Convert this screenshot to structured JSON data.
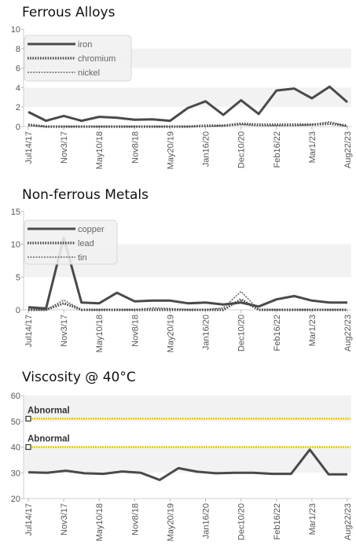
{
  "chart_data": [
    {
      "type": "line",
      "title": "Ferrous Alloys",
      "ylim": [
        0,
        10
      ],
      "y_ticks": [
        0,
        2,
        4,
        6,
        8,
        10
      ],
      "x_tick_labels": [
        "Jul14/17",
        "Nov3/17",
        "May10/18",
        "Nov8/18",
        "May20/19",
        "Jan16/20",
        "Dec10/20",
        "Feb16/22",
        "Mar1/23",
        "Aug22/23"
      ],
      "grid": "horizontal-bands",
      "legend": "top-left",
      "series": [
        {
          "name": "iron",
          "style": "solid",
          "values": [
            1.5,
            0.6,
            1.1,
            0.6,
            1.0,
            0.9,
            0.7,
            0.75,
            0.6,
            1.9,
            2.6,
            1.2,
            2.7,
            1.3,
            3.7,
            3.9,
            2.9,
            4.1,
            2.5
          ]
        },
        {
          "name": "chromium",
          "style": "dotted",
          "values": [
            0.2,
            0,
            0,
            0,
            0,
            0,
            0,
            0,
            0,
            0,
            0.1,
            0.1,
            0.3,
            0.2,
            0.2,
            0.2,
            0.2,
            0.3,
            0.1
          ]
        },
        {
          "name": "nickel",
          "style": "dashed",
          "values": [
            0.1,
            0,
            0,
            0,
            0,
            0,
            0,
            0,
            0,
            0,
            0,
            0.1,
            0.2,
            0.1,
            0.1,
            0.1,
            0.2,
            0.5,
            0
          ]
        }
      ]
    },
    {
      "type": "line",
      "title": "Non-ferrous Metals",
      "ylim": [
        0,
        15
      ],
      "y_ticks": [
        0,
        5,
        10,
        15
      ],
      "x_tick_labels": [
        "Jul14/17",
        "Nov3/17",
        "May10/18",
        "Nov8/18",
        "May20/19",
        "Jan16/20",
        "Dec10/20",
        "Feb16/22",
        "Mar1/23",
        "Aug22/23"
      ],
      "grid": "horizontal-bands",
      "legend": "top-left",
      "series": [
        {
          "name": "copper",
          "style": "solid",
          "values": [
            0.4,
            0.2,
            11.0,
            1.1,
            1.0,
            2.6,
            1.3,
            1.4,
            1.4,
            1.0,
            1.1,
            0.8,
            1.1,
            0.5,
            1.6,
            2.1,
            1.4,
            1.1,
            1.1
          ]
        },
        {
          "name": "lead",
          "style": "dotted",
          "values": [
            0,
            0,
            1.0,
            0,
            0,
            0,
            0,
            0,
            0,
            0,
            0,
            0,
            1.6,
            0,
            0,
            0,
            0,
            0,
            0
          ]
        },
        {
          "name": "tin",
          "style": "dashed",
          "values": [
            0,
            0,
            1.5,
            0,
            0,
            0,
            0,
            0.3,
            0.2,
            0,
            0,
            0.3,
            2.8,
            0,
            0,
            0,
            0,
            0,
            0
          ]
        }
      ]
    },
    {
      "type": "line",
      "title": "Viscosity @ 40°C",
      "ylim": [
        20,
        60
      ],
      "y_ticks": [
        20,
        30,
        40,
        50,
        60
      ],
      "x_tick_labels": [
        "Jul14/17",
        "Nov3/17",
        "May10/18",
        "Nov8/18",
        "May20/19",
        "Jan16/20",
        "Dec10/20",
        "Feb16/22",
        "Mar1/23",
        "Aug22/23"
      ],
      "grid": "horizontal-bands",
      "legend": "none",
      "series": [
        {
          "name": "",
          "style": "solid",
          "values": [
            30.2,
            30.0,
            30.8,
            29.8,
            29.6,
            30.5,
            30.0,
            27.2,
            31.8,
            30.4,
            29.8,
            30.0,
            30.0,
            29.6,
            29.6,
            39.0,
            29.4,
            29.4
          ]
        }
      ],
      "limits": [
        {
          "label": "Abnormal",
          "value": 51,
          "color": "#f2c400"
        },
        {
          "label": "Abnormal",
          "value": 40,
          "color": "#f2c400"
        }
      ]
    }
  ]
}
